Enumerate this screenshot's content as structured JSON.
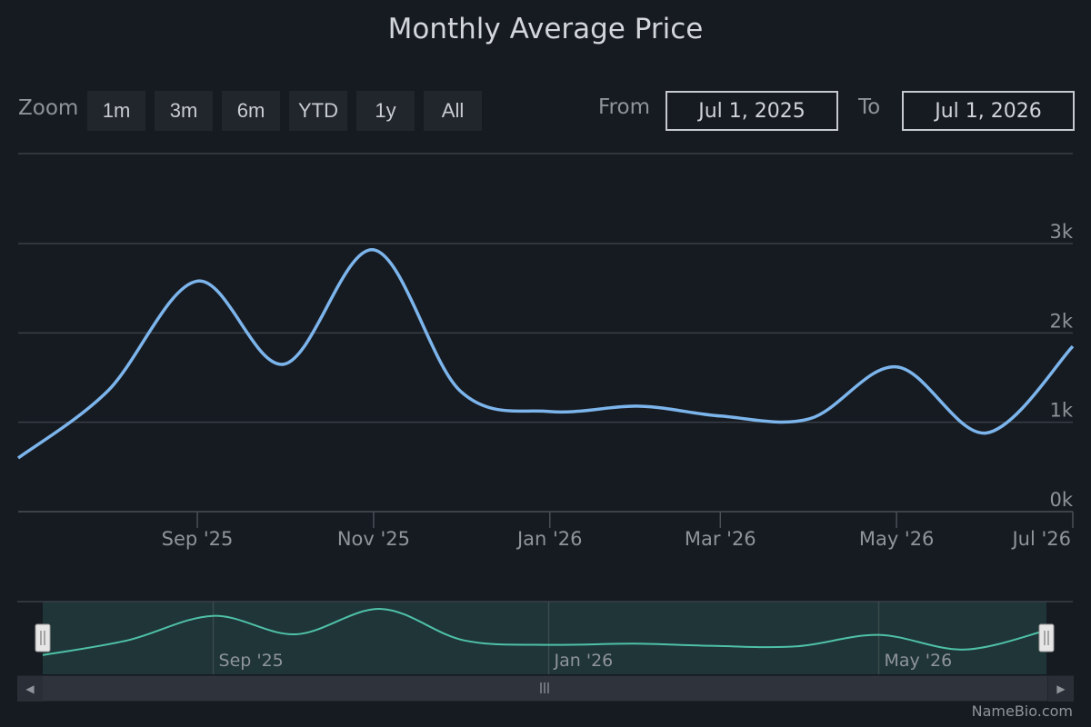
{
  "chart_data": {
    "type": "line",
    "title": "Monthly Average Price",
    "x": [
      "2025-07-01",
      "2025-08-01",
      "2025-09-01",
      "2025-10-01",
      "2025-11-01",
      "2025-12-01",
      "2026-01-01",
      "2026-02-01",
      "2026-03-01",
      "2026-04-01",
      "2026-05-01",
      "2026-06-01",
      "2026-07-01"
    ],
    "series": [
      {
        "values": [
          600,
          1350,
          2580,
          1650,
          2930,
          1350,
          1120,
          1180,
          1070,
          1040,
          1620,
          880,
          1850
        ]
      }
    ],
    "ylim": [
      0,
      3000
    ],
    "yticks": [
      "0k",
      "1k",
      "2k",
      "3k"
    ],
    "xticks": [
      "Sep '25",
      "Nov '25",
      "Jan '26",
      "Mar '26",
      "May '26",
      "Jul '26"
    ],
    "navigator_ticks": [
      "Sep '25",
      "Jan '26",
      "May '26"
    ],
    "line_color": "#7cb5ec",
    "navigator_color": "#4fc1a7"
  },
  "zoom": {
    "label": "Zoom",
    "buttons": [
      "1m",
      "3m",
      "6m",
      "YTD",
      "1y",
      "All"
    ]
  },
  "range": {
    "from_label": "From",
    "from_value": "Jul 1, 2025",
    "to_label": "To",
    "to_value": "Jul 1, 2026"
  },
  "credit": "NameBio.com"
}
